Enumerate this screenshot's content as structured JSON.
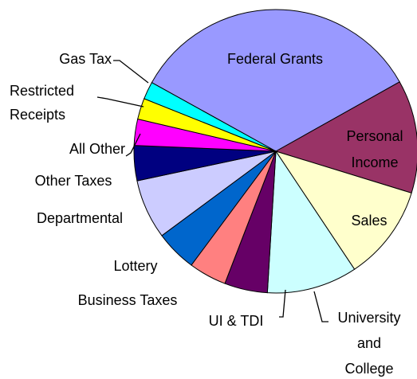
{
  "chart_data": {
    "type": "pie",
    "categories": [
      "Federal Grants",
      "Personal Income",
      "Sales",
      "University and College",
      "UI & TDI",
      "Business Taxes",
      "Lottery",
      "Departmental",
      "Other Taxes",
      "All Other",
      "Restricted Receipts",
      "Gas Tax"
    ],
    "values": [
      33.8,
      12.9,
      10.9,
      10.3,
      4.9,
      4.3,
      4.7,
      6.8,
      4.0,
      3.0,
      2.4,
      2.0
    ],
    "colors": [
      "#9999ff",
      "#993366",
      "#ffffcc",
      "#ccffff",
      "#660066",
      "#ff8080",
      "#0066cc",
      "#ccccff",
      "#000080",
      "#ff00ff",
      "#ffff00",
      "#00ffff"
    ]
  }
}
